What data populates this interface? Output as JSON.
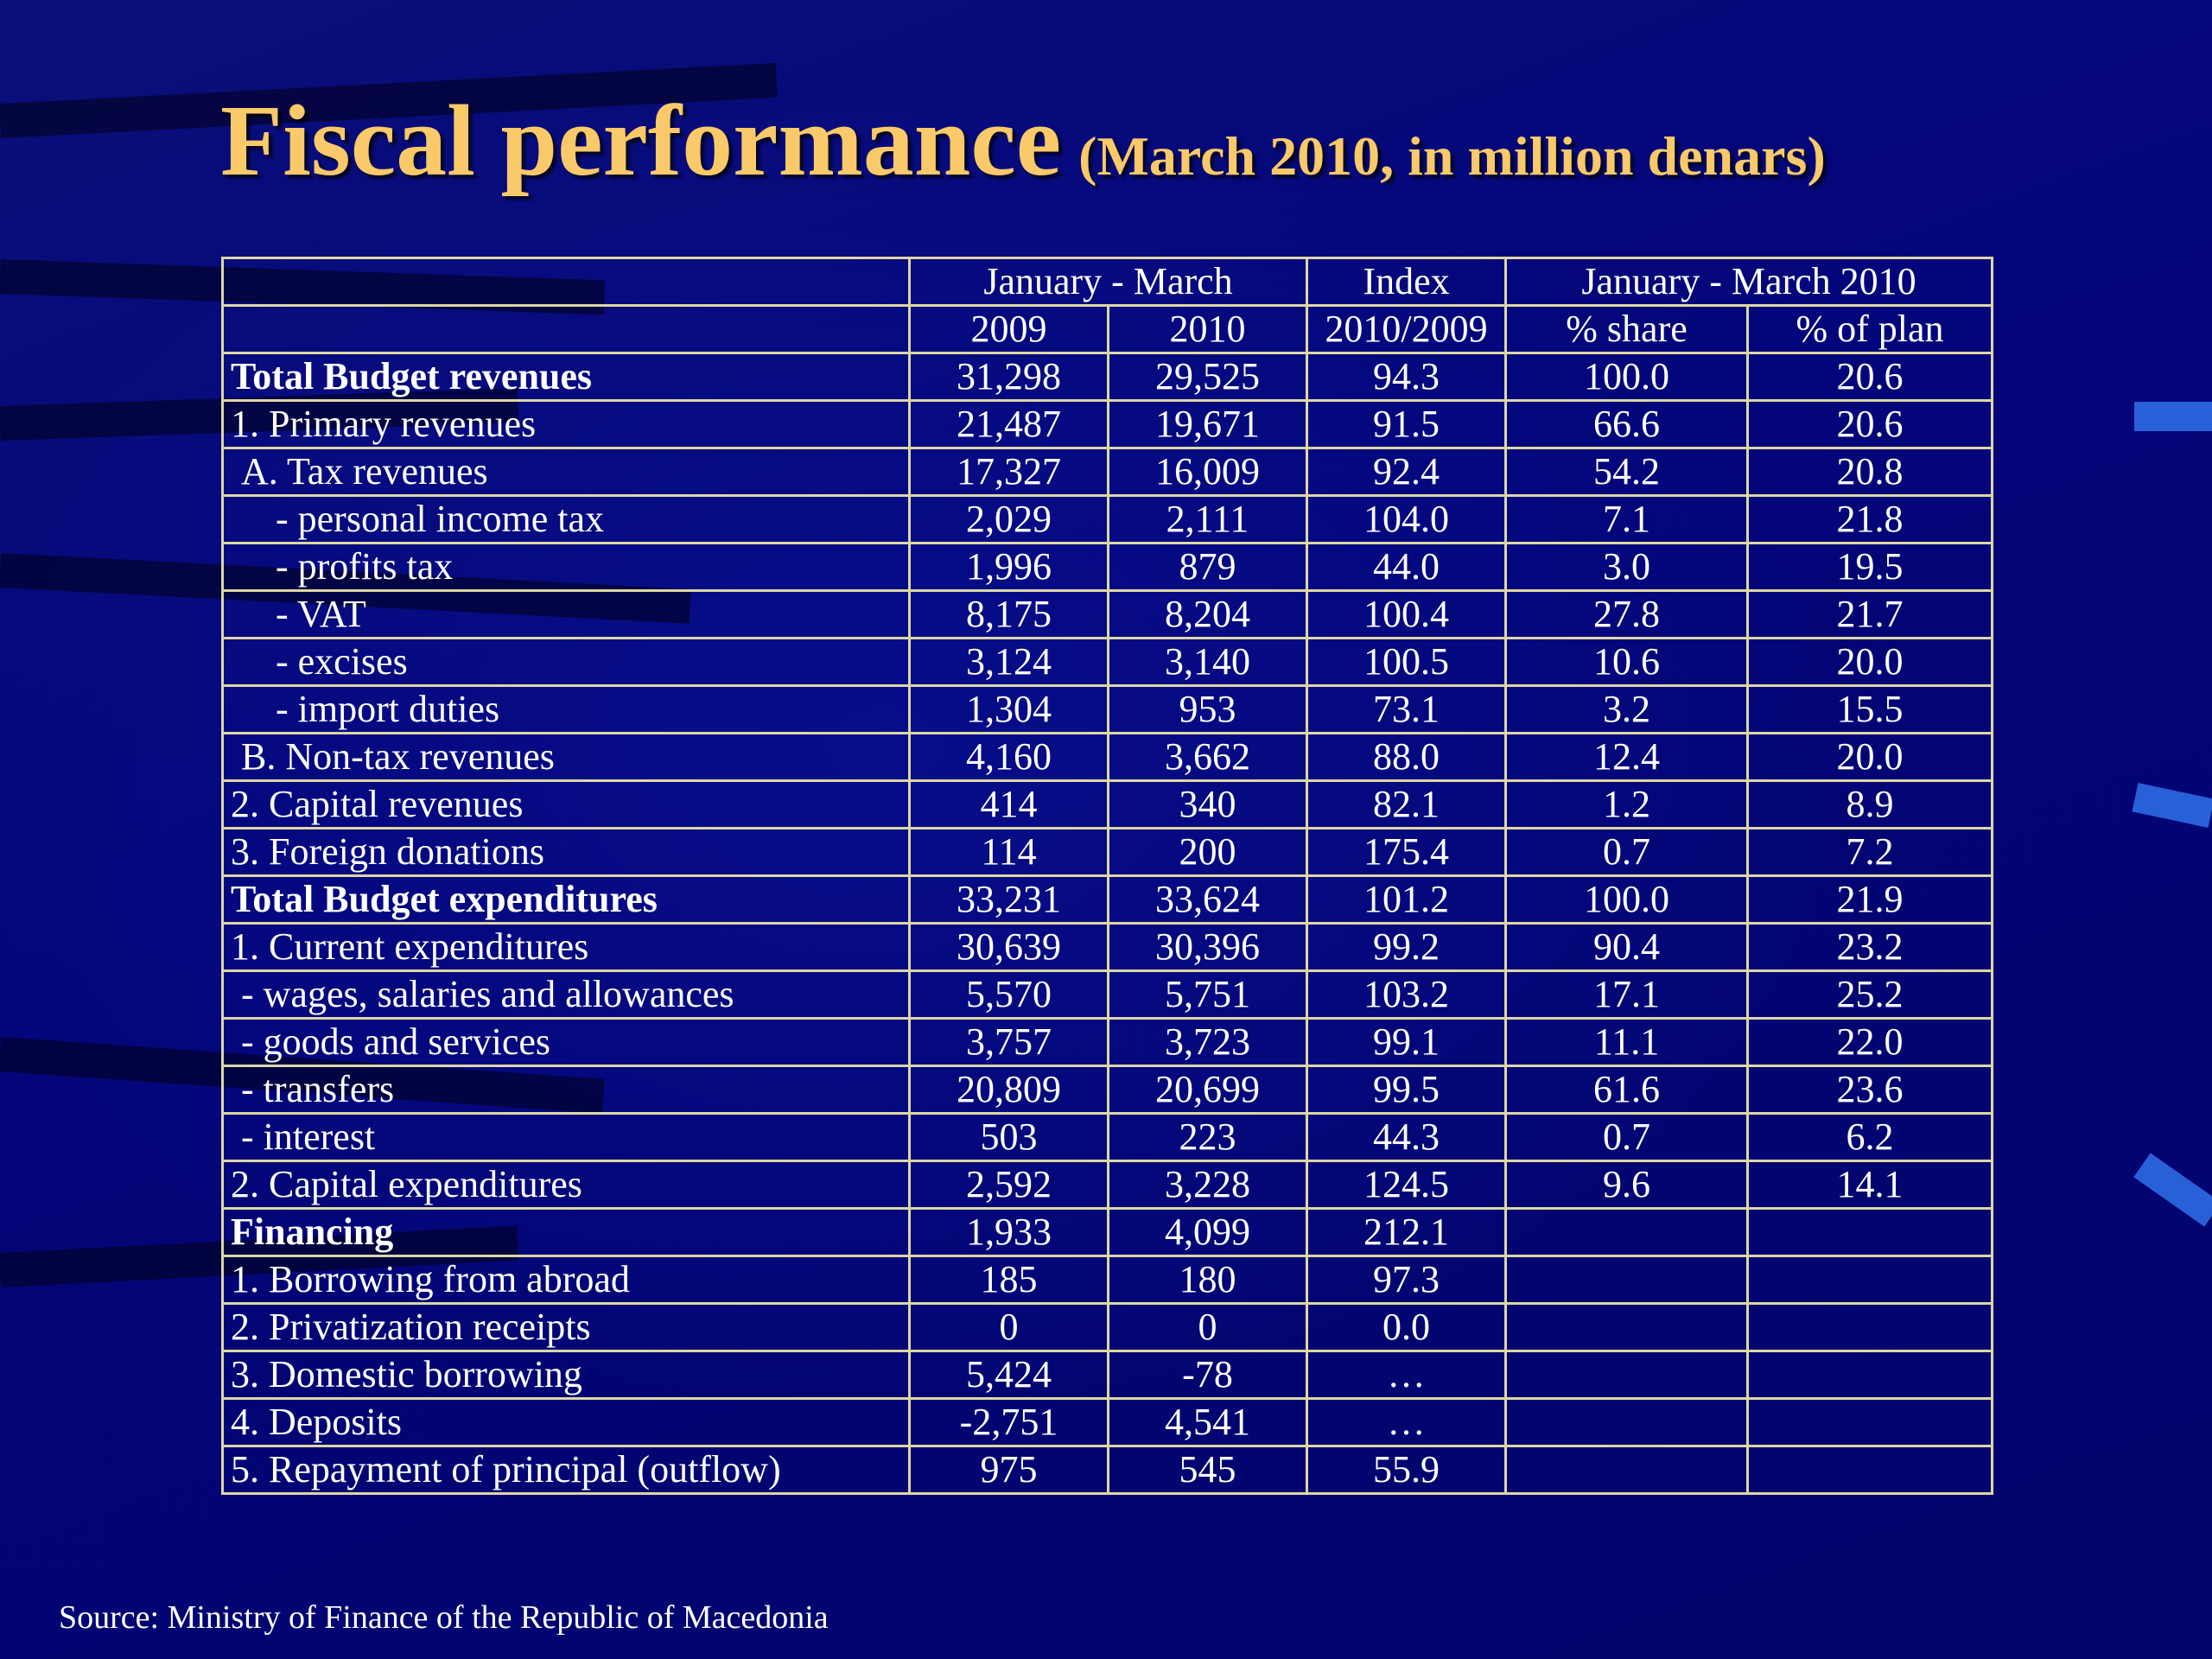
{
  "title": {
    "main": "Fiscal performance",
    "sub": "(March 2010, in million denars)"
  },
  "table": {
    "header_row1": {
      "jan_mar": "January - March",
      "index": "Index",
      "jan_mar_2010": "January - March 2010"
    },
    "header_row2": {
      "y2009": "2009",
      "y2010": "2010",
      "index": "2010/2009",
      "share": "% share",
      "plan": "% of plan"
    },
    "rows": [
      {
        "label": "Total Budget revenues",
        "v2009": "31,298",
        "v2010": "29,525",
        "index": "94.3",
        "share": "100.0",
        "plan": "20.6"
      },
      {
        "label": "1. Primary revenues",
        "v2009": "21,487",
        "v2010": "19,671",
        "index": "91.5",
        "share": "66.6",
        "plan": "20.6"
      },
      {
        "label": "A. Tax revenues",
        "v2009": "17,327",
        "v2010": "16,009",
        "index": "92.4",
        "share": "54.2",
        "plan": "20.8"
      },
      {
        "label": "- personal income tax",
        "v2009": "2,029",
        "v2010": "2,111",
        "index": "104.0",
        "share": "7.1",
        "plan": "21.8"
      },
      {
        "label": "- profits tax",
        "v2009": "1,996",
        "v2010": "879",
        "index": "44.0",
        "share": "3.0",
        "plan": "19.5"
      },
      {
        "label": "- VAT",
        "v2009": "8,175",
        "v2010": "8,204",
        "index": "100.4",
        "share": "27.8",
        "plan": "21.7"
      },
      {
        "label": "- excises",
        "v2009": "3,124",
        "v2010": "3,140",
        "index": "100.5",
        "share": "10.6",
        "plan": "20.0"
      },
      {
        "label": "- import duties",
        "v2009": "1,304",
        "v2010": "953",
        "index": "73.1",
        "share": "3.2",
        "plan": "15.5"
      },
      {
        "label": "B. Non-tax revenues",
        "v2009": "4,160",
        "v2010": "3,662",
        "index": "88.0",
        "share": "12.4",
        "plan": "20.0"
      },
      {
        "label": "2. Capital revenues",
        "v2009": "414",
        "v2010": "340",
        "index": "82.1",
        "share": "1.2",
        "plan": "8.9"
      },
      {
        "label": "3. Foreign donations",
        "v2009": "114",
        "v2010": "200",
        "index": "175.4",
        "share": "0.7",
        "plan": "7.2"
      },
      {
        "label": "Total Budget expenditures",
        "v2009": "33,231",
        "v2010": "33,624",
        "index": "101.2",
        "share": "100.0",
        "plan": "21.9"
      },
      {
        "label": "1. Current expenditures",
        "v2009": "30,639",
        "v2010": "30,396",
        "index": "99.2",
        "share": "90.4",
        "plan": "23.2"
      },
      {
        "label": "- wages, salaries and allowances",
        "v2009": "5,570",
        "v2010": "5,751",
        "index": "103.2",
        "share": "17.1",
        "plan": "25.2"
      },
      {
        "label": "- goods and services",
        "v2009": "3,757",
        "v2010": "3,723",
        "index": "99.1",
        "share": "11.1",
        "plan": "22.0"
      },
      {
        "label": "- transfers",
        "v2009": "20,809",
        "v2010": "20,699",
        "index": "99.5",
        "share": "61.6",
        "plan": "23.6"
      },
      {
        "label": "- interest",
        "v2009": "503",
        "v2010": "223",
        "index": "44.3",
        "share": "0.7",
        "plan": "6.2"
      },
      {
        "label": "2. Capital expenditures",
        "v2009": "2,592",
        "v2010": "3,228",
        "index": "124.5",
        "share": "9.6",
        "plan": "14.1"
      },
      {
        "label": "Financing",
        "v2009": "1,933",
        "v2010": "4,099",
        "index": "212.1",
        "share": "",
        "plan": ""
      },
      {
        "label": "1. Borrowing from abroad",
        "v2009": "185",
        "v2010": "180",
        "index": "97.3",
        "share": "",
        "plan": ""
      },
      {
        "label": "2. Privatization receipts",
        "v2009": "0",
        "v2010": "0",
        "index": "0.0",
        "share": "",
        "plan": ""
      },
      {
        "label": "3. Domestic borrowing",
        "v2009": "5,424",
        "v2010": "-78",
        "index": "…",
        "share": "",
        "plan": ""
      },
      {
        "label": "4. Deposits",
        "v2009": "-2,751",
        "v2010": "4,541",
        "index": "…",
        "share": "",
        "plan": ""
      },
      {
        "label": "5. Repayment of principal (outflow)",
        "v2009": "975",
        "v2010": "545",
        "index": "55.9",
        "share": "",
        "plan": ""
      }
    ]
  },
  "source": "Source: Ministry of Finance of the Republic of Macedonia",
  "colors": {
    "background": "#02026e",
    "title": "#f9c96a",
    "table_border": "#ddd7a4",
    "text": "#ffffff",
    "accent": "#2860d8"
  }
}
